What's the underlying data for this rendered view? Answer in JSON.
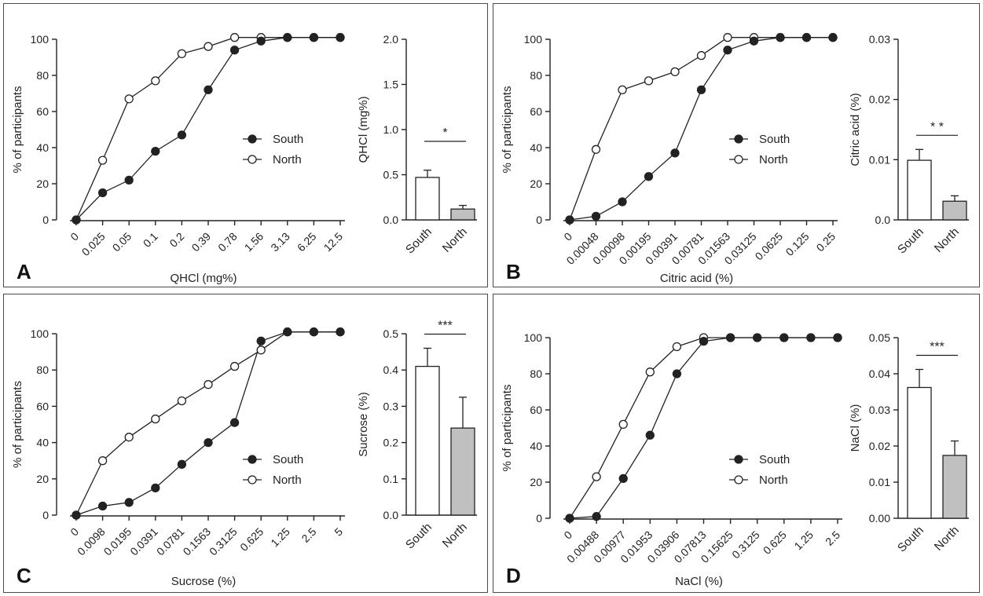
{
  "colors": {
    "axis": "#222222",
    "bar_north": "#c0c0c0",
    "bar_south": "#ffffff",
    "border": "#4a4a4a"
  },
  "chart_data": [
    {
      "panel_letter": "A",
      "type": "line",
      "xlabel": "QHCl (mg%)",
      "ylabel": "% of participants",
      "ylim": [
        0,
        100
      ],
      "yticks": [
        "0",
        "20",
        "40",
        "60",
        "80",
        "100"
      ],
      "categories": [
        "0",
        "0.025",
        "0.05",
        "0.1",
        "0.2",
        "0.39",
        "0.78",
        "1.56",
        "3.13",
        "6.25",
        "12.5"
      ],
      "series": [
        {
          "name": "South",
          "marker": "filled",
          "values": [
            0,
            15,
            22,
            38,
            47,
            72,
            94,
            99,
            101,
            101,
            101
          ]
        },
        {
          "name": "North",
          "marker": "open",
          "values": [
            0,
            33,
            67,
            77,
            92,
            96,
            101,
            101,
            101,
            101,
            101
          ]
        }
      ],
      "legend": [
        "South",
        "North"
      ],
      "bar": {
        "type": "bar",
        "ylabel": "QHCl (mg%)",
        "ylim": [
          0,
          2.0
        ],
        "yticks": [
          "0.0",
          "0.5",
          "1.0",
          "1.5",
          "2.0"
        ],
        "categories": [
          "South",
          "North"
        ],
        "values": [
          0.47,
          0.12
        ],
        "errors": [
          0.08,
          0.04
        ],
        "significance": "*"
      }
    },
    {
      "panel_letter": "B",
      "type": "line",
      "xlabel": "Citric acid (%)",
      "ylabel": "% of participants",
      "ylim": [
        0,
        100
      ],
      "yticks": [
        "0",
        "20",
        "40",
        "60",
        "80",
        "100"
      ],
      "categories": [
        "0",
        "0.00048",
        "0.00098",
        "0.00195",
        "0.00391",
        "0.00781",
        "0.01563",
        "0.03125",
        "0.0625",
        "0.125",
        "0.25"
      ],
      "series": [
        {
          "name": "South",
          "marker": "filled",
          "values": [
            0,
            2,
            10,
            24,
            37,
            72,
            94,
            99,
            101,
            101,
            101
          ]
        },
        {
          "name": "North",
          "marker": "open",
          "values": [
            0,
            39,
            72,
            77,
            82,
            91,
            101,
            101,
            101,
            101,
            101
          ]
        }
      ],
      "legend": [
        "South",
        "North"
      ],
      "bar": {
        "type": "bar",
        "ylabel": "Citric acid (%)",
        "ylim": [
          0,
          0.03
        ],
        "yticks": [
          "0.0",
          "0.01",
          "0.02",
          "0.03"
        ],
        "categories": [
          "South",
          "North"
        ],
        "values": [
          0.0099,
          0.0031
        ],
        "errors": [
          0.0018,
          0.0009
        ],
        "significance": "* *"
      }
    },
    {
      "panel_letter": "C",
      "type": "line",
      "xlabel": "Sucrose (%)",
      "ylabel": "% of participants",
      "ylim": [
        0,
        100
      ],
      "yticks": [
        "0",
        "20",
        "40",
        "60",
        "80",
        "100"
      ],
      "categories": [
        "0",
        "0.0098",
        "0.0195",
        "0.0391",
        "0.0781",
        "0.1563",
        "0.3125",
        "0.625",
        "1.25",
        "2.5",
        "5"
      ],
      "series": [
        {
          "name": "South",
          "marker": "filled",
          "values": [
            0,
            5,
            7,
            15,
            28,
            40,
            51,
            96,
            101,
            101,
            101
          ]
        },
        {
          "name": "North",
          "marker": "open",
          "values": [
            0,
            30,
            43,
            53,
            63,
            72,
            82,
            91,
            101,
            101,
            101
          ]
        }
      ],
      "legend": [
        "South",
        "North"
      ],
      "bar": {
        "type": "bar",
        "ylabel": "Sucrose (%)",
        "ylim": [
          0,
          0.5
        ],
        "yticks": [
          "0.0",
          "0.1",
          "0.2",
          "0.3",
          "0.4",
          "0.5"
        ],
        "categories": [
          "South",
          "North"
        ],
        "values": [
          0.41,
          0.24
        ],
        "errors": [
          0.05,
          0.085
        ],
        "significance": "***"
      }
    },
    {
      "panel_letter": "D",
      "type": "line",
      "xlabel": "NaCl (%)",
      "ylabel": "% of participants",
      "ylim": [
        0,
        100
      ],
      "yticks": [
        "0",
        "20",
        "40",
        "60",
        "80",
        "100"
      ],
      "categories": [
        "0",
        "0.00488",
        "0.00977",
        "0.01953",
        "0.03906",
        "0.07813",
        "0.15625",
        "0.3125",
        "0.625",
        "1.25",
        "2.5"
      ],
      "series": [
        {
          "name": "South",
          "marker": "filled",
          "values": [
            0,
            1,
            22,
            46,
            80,
            98,
            100,
            100,
            100,
            100,
            100
          ]
        },
        {
          "name": "North",
          "marker": "open",
          "values": [
            0,
            23,
            52,
            81,
            95,
            100,
            100,
            100,
            100,
            100,
            100
          ]
        }
      ],
      "legend": [
        "South",
        "North"
      ],
      "bar": {
        "type": "bar",
        "ylabel": "NaCl (%)",
        "ylim": [
          0,
          0.05
        ],
        "yticks": [
          "0.00",
          "0.01",
          "0.02",
          "0.03",
          "0.04",
          "0.05"
        ],
        "categories": [
          "South",
          "North"
        ],
        "values": [
          0.0362,
          0.0174
        ],
        "errors": [
          0.005,
          0.004
        ],
        "significance": "***"
      }
    }
  ]
}
